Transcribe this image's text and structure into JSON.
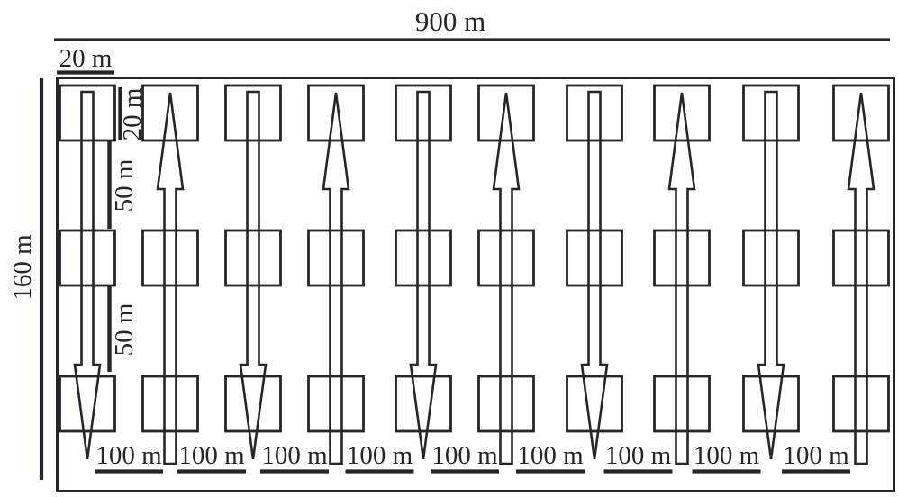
{
  "figure": {
    "outer_width_label": "900 m",
    "outer_height_label": "160 m",
    "plot_width_label": "20 m",
    "plot_height_label": "20 m",
    "row_gap_labels": [
      "50 m",
      "50 m"
    ],
    "lateral_spacing_labels": [
      "100 m",
      "100 m",
      "100 m",
      "100 m",
      "100 m",
      "100 m",
      "100 m",
      "100 m",
      "100 m"
    ],
    "grid": {
      "rows": 3,
      "columns": 10
    },
    "arrow_directions": [
      "down",
      "up",
      "down",
      "up",
      "down",
      "up",
      "down",
      "up",
      "down",
      "up"
    ]
  },
  "colors": {
    "line": "#26262a",
    "background": "#ffffff"
  }
}
